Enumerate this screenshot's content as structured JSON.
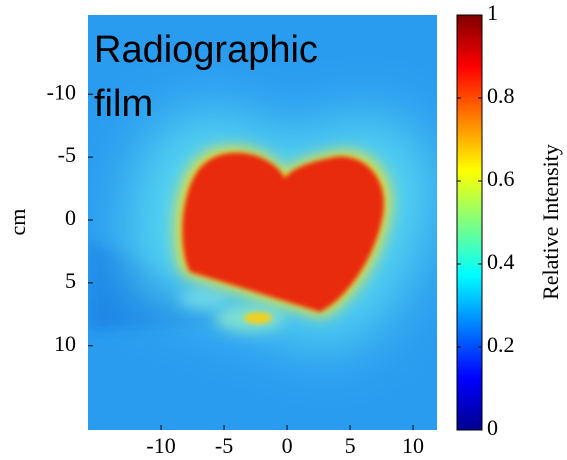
{
  "chart_data": {
    "type": "image",
    "annotation_lines": [
      "Radiographic",
      "film"
    ],
    "ylabel": "cm",
    "xlim": [
      -15.8,
      11.9
    ],
    "xticks": [
      -10,
      -5,
      0,
      5,
      10
    ],
    "ylim": [
      -16.3,
      16.7
    ],
    "yticks": [
      -10,
      -5,
      0,
      5,
      10
    ],
    "yreverse": true,
    "colorbar": {
      "label": "Relative Intensity",
      "lim": [
        0,
        1
      ],
      "ticks": [
        0,
        0.2,
        0.4,
        0.6,
        0.8,
        1
      ]
    }
  }
}
